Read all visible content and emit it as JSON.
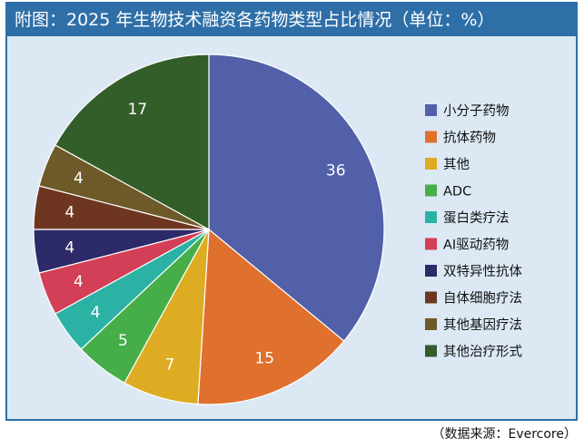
{
  "chart_data": {
    "type": "pie",
    "title": "附图：2025 年生物技术融资各药物类型占比情况（单位：%）",
    "source": "（数据来源：Evercore）",
    "legend_position": "right",
    "slices": [
      {
        "label": "小分子药物",
        "value": 36,
        "color": "#5160a8"
      },
      {
        "label": "抗体药物",
        "value": 15,
        "color": "#e0702e"
      },
      {
        "label": "其他",
        "value": 7,
        "color": "#ddac22"
      },
      {
        "label": "ADC",
        "value": 5,
        "color": "#46ae48"
      },
      {
        "label": "蛋白类疗法",
        "value": 4,
        "color": "#2bb2a4"
      },
      {
        "label": "AI驱动药物",
        "value": 4,
        "color": "#d33f57"
      },
      {
        "label": "双特异性抗体",
        "value": 4,
        "color": "#2d2a6a"
      },
      {
        "label": "自体细胞疗法",
        "value": 4,
        "color": "#6e3620"
      },
      {
        "label": "其他基因疗法",
        "value": 4,
        "color": "#6d5a28"
      },
      {
        "label": "其他治疗形式",
        "value": 17,
        "color": "#335e2a"
      }
    ]
  }
}
